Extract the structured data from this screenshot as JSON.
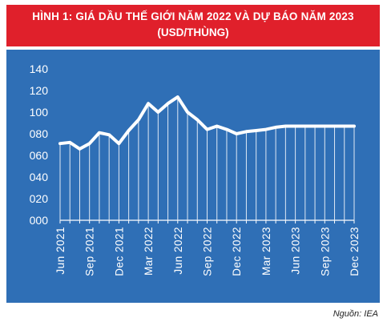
{
  "title": {
    "line1": "HÌNH 1: GIÁ DẦU THẾ GIỚI NĂM 2022 VÀ DỰ BÁO NĂM 2023",
    "line2": "(USD/THÙNG)"
  },
  "source": "Nguồn: IEA",
  "colors": {
    "title_bg": "#e0202b",
    "plot_bg": "#2f6fb6",
    "line": "#ffffff",
    "drop_lines": "#dfe8f4"
  },
  "chart_data": {
    "type": "line",
    "title": "HÌNH 1: GIÁ DẦU THẾ GIỚI NĂM 2022 VÀ DỰ BÁO NĂM 2023 (USD/THÙNG)",
    "xlabel": "",
    "ylabel": "",
    "ylim": [
      0,
      140
    ],
    "yticks": [
      "000",
      "020",
      "040",
      "060",
      "080",
      "100",
      "120",
      "140"
    ],
    "grid": false,
    "legend": "none",
    "x": [
      "Jun 2021",
      "Jul 2021",
      "Aug 2021",
      "Sep 2021",
      "Oct 2021",
      "Nov 2021",
      "Dec 2021",
      "Jan 2022",
      "Feb 2022",
      "Mar 2022",
      "Apr 2022",
      "May 2022",
      "Jun 2022",
      "Jul 2022",
      "Aug 2022",
      "Sep 2022",
      "Oct 2022",
      "Nov 2022",
      "Dec 2022",
      "Jan 2023",
      "Feb 2023",
      "Mar 2023",
      "Apr 2023",
      "May 2023",
      "Jun 2023",
      "Jul 2023",
      "Aug 2023",
      "Sep 2023",
      "Oct 2023",
      "Nov 2023",
      "Dec 2023"
    ],
    "x_tick_labels": [
      {
        "index": 0,
        "label": "Jun 2021"
      },
      {
        "index": 3,
        "label": "Sep 2021"
      },
      {
        "index": 6,
        "label": "Dec 2021"
      },
      {
        "index": 9,
        "label": "Mar 2022"
      },
      {
        "index": 12,
        "label": "Jun 2022"
      },
      {
        "index": 15,
        "label": "Sep 2022"
      },
      {
        "index": 18,
        "label": "Dec 2022"
      },
      {
        "index": 21,
        "label": "Mar 2023"
      },
      {
        "index": 24,
        "label": "Jun 2023"
      },
      {
        "index": 27,
        "label": "Sep 2023"
      },
      {
        "index": 30,
        "label": "Dec 2023"
      }
    ],
    "series": [
      {
        "values": [
          71,
          72,
          66,
          71,
          81,
          79,
          71,
          83,
          93,
          108,
          100,
          108,
          114,
          100,
          93,
          84,
          87,
          84,
          80,
          82,
          83,
          84,
          86,
          87,
          87,
          87,
          87,
          87,
          87,
          87,
          87
        ]
      }
    ]
  }
}
